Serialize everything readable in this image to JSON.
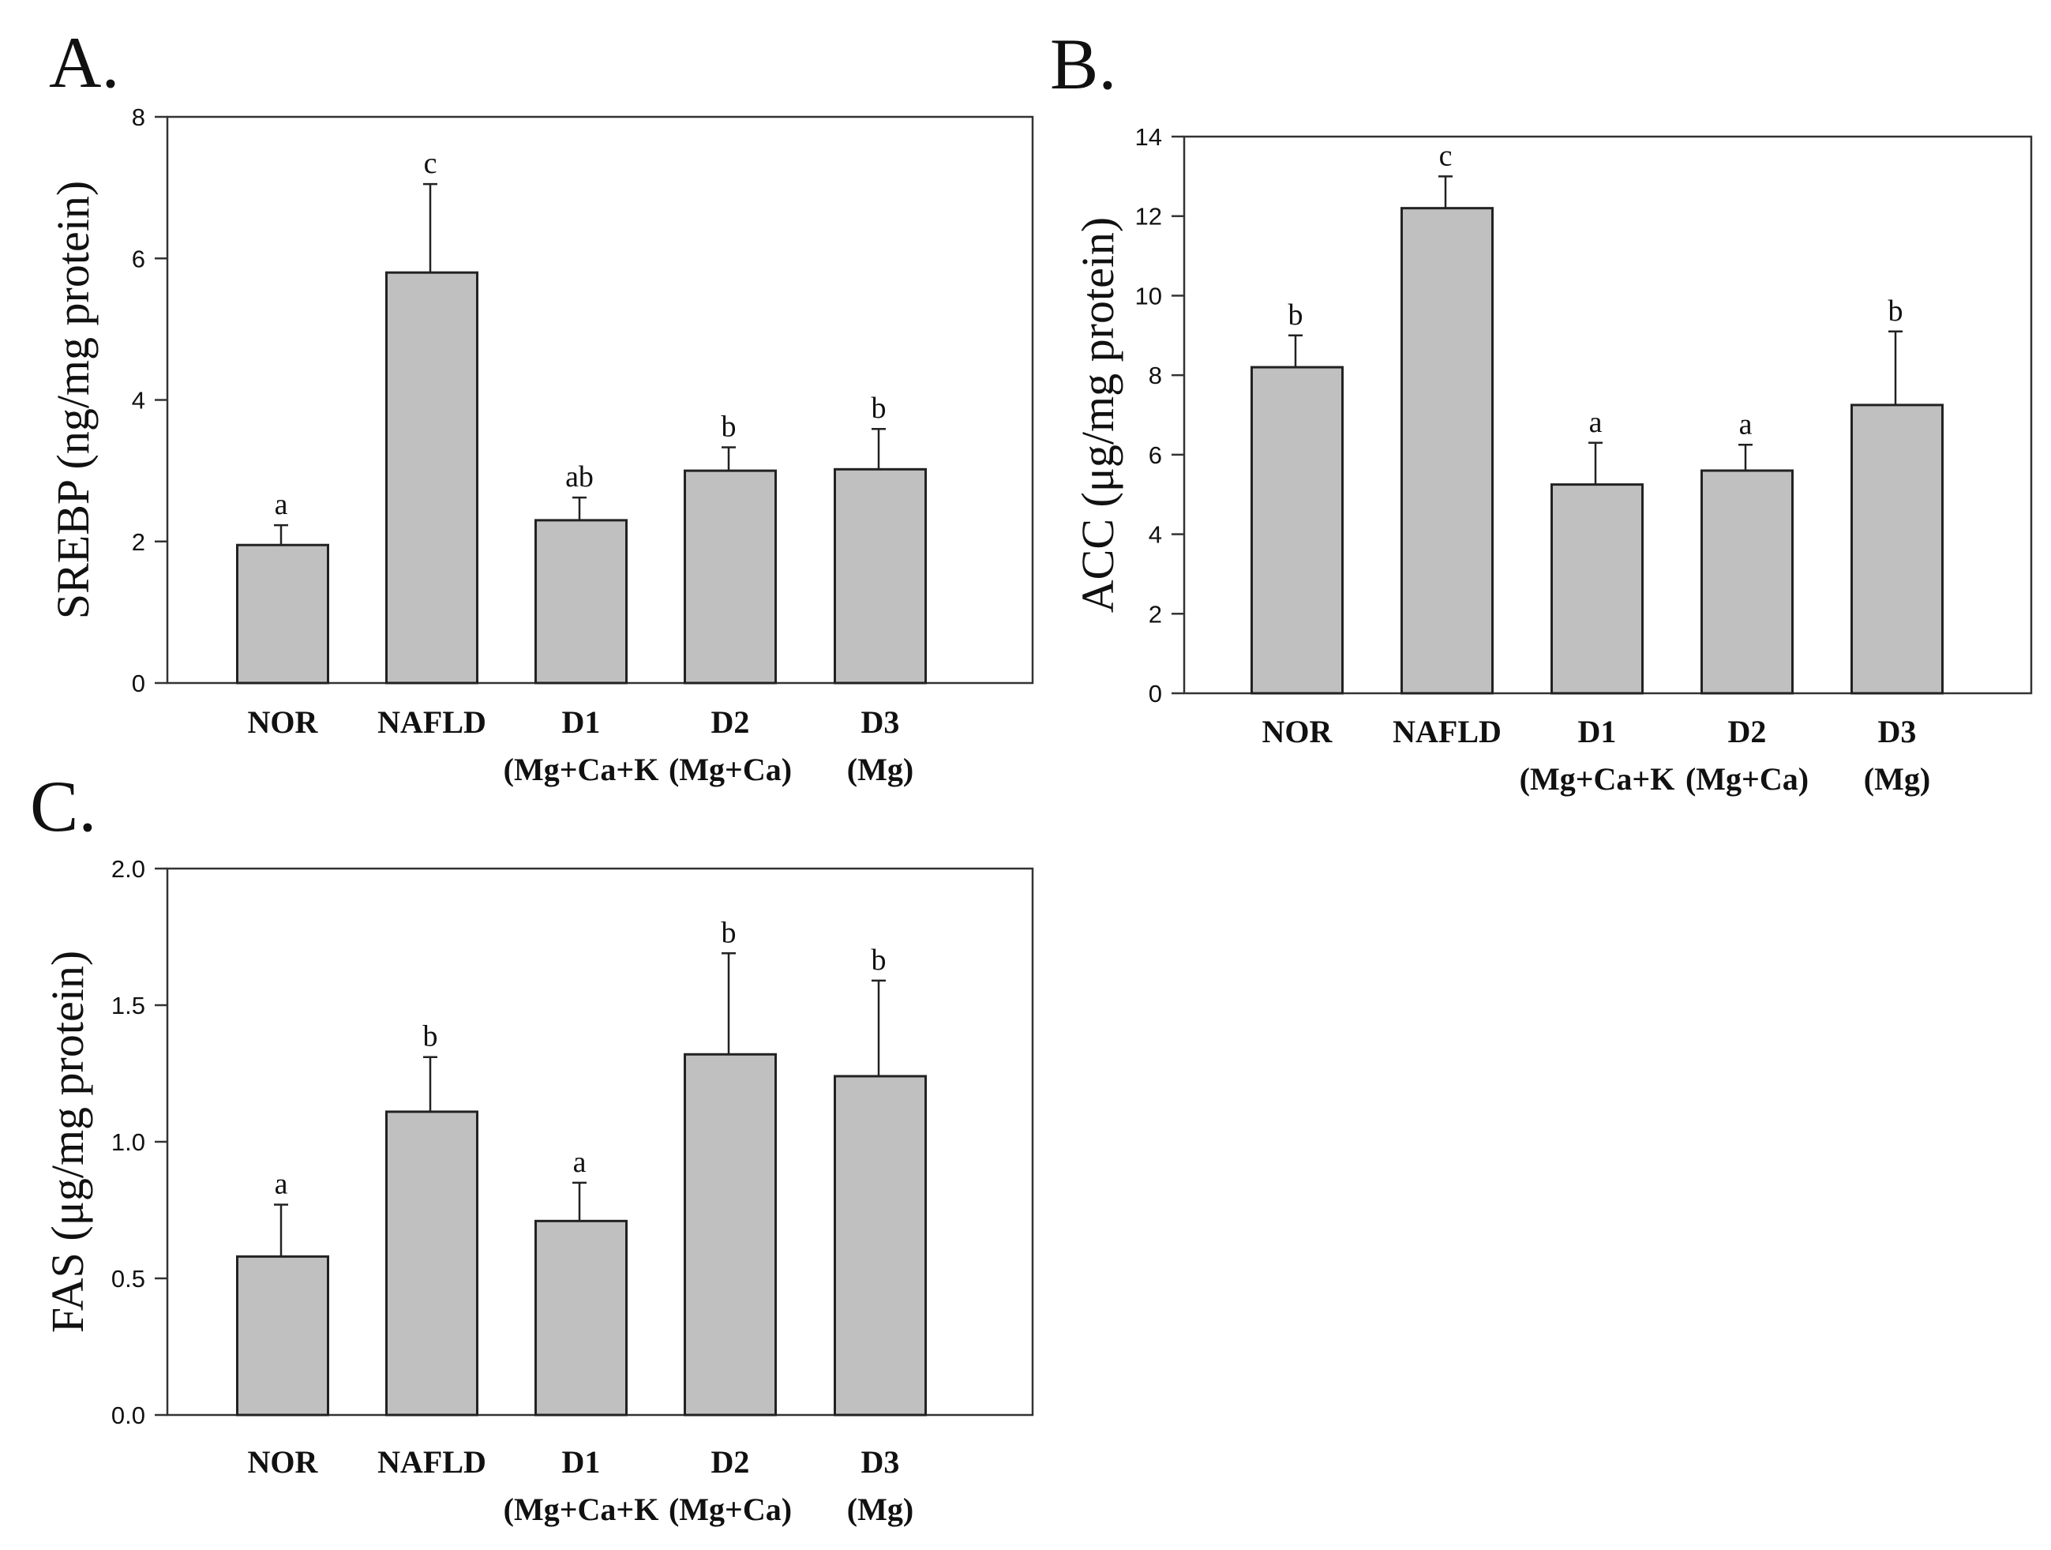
{
  "chart_data": [
    {
      "type": "bar",
      "panel": "A.",
      "title": "",
      "xlabel": "",
      "ylabel": "SREBP (ng/mg protein)",
      "ylim": [
        0,
        8
      ],
      "yticks": [
        "0",
        "2",
        "4",
        "6",
        "8"
      ],
      "categories": [
        {
          "line1": "NOR",
          "line2": ""
        },
        {
          "line1": "NAFLD",
          "line2": ""
        },
        {
          "line1": "D1",
          "line2": "(Mg+Ca+K"
        },
        {
          "line1": "D2",
          "line2": "(Mg+Ca)"
        },
        {
          "line1": "D3",
          "line2": "(Mg)"
        }
      ],
      "values": [
        1.95,
        5.8,
        2.3,
        3.0,
        3.02
      ],
      "errors": [
        0.28,
        1.25,
        0.32,
        0.33,
        0.57
      ],
      "significance": [
        "a",
        "c",
        "ab",
        "b",
        "b"
      ],
      "grid": false,
      "bar_color": "#c0c0c0"
    },
    {
      "type": "bar",
      "panel": "B.",
      "title": "",
      "xlabel": "",
      "ylabel": "ACC (μg/mg protein)",
      "ylim": [
        0,
        14
      ],
      "yticks": [
        "0",
        "2",
        "4",
        "6",
        "8",
        "10",
        "12",
        "14"
      ],
      "categories": [
        {
          "line1": "NOR",
          "line2": ""
        },
        {
          "line1": "NAFLD",
          "line2": ""
        },
        {
          "line1": "D1",
          "line2": "(Mg+Ca+K"
        },
        {
          "line1": "D2",
          "line2": "(Mg+Ca)"
        },
        {
          "line1": "D3",
          "line2": "(Mg)"
        }
      ],
      "values": [
        8.2,
        12.2,
        5.25,
        5.6,
        7.25
      ],
      "errors": [
        0.8,
        0.8,
        1.05,
        0.65,
        1.85
      ],
      "significance": [
        "b",
        "c",
        "a",
        "a",
        "b"
      ],
      "grid": false,
      "bar_color": "#c0c0c0"
    },
    {
      "type": "bar",
      "panel": "C.",
      "title": "",
      "xlabel": "",
      "ylabel": "FAS (μg/mg protein)",
      "ylim": [
        0,
        2
      ],
      "yticks": [
        "0.0",
        "0.5",
        "1.0",
        "1.5",
        "2.0"
      ],
      "categories": [
        {
          "line1": "NOR",
          "line2": ""
        },
        {
          "line1": "NAFLD",
          "line2": ""
        },
        {
          "line1": "D1",
          "line2": "(Mg+Ca+K"
        },
        {
          "line1": "D2",
          "line2": "(Mg+Ca)"
        },
        {
          "line1": "D3",
          "line2": "(Mg)"
        }
      ],
      "values": [
        0.58,
        1.11,
        0.71,
        1.32,
        1.24
      ],
      "errors": [
        0.19,
        0.2,
        0.14,
        0.37,
        0.35
      ],
      "significance": [
        "a",
        "b",
        "a",
        "b",
        "b"
      ],
      "grid": false,
      "bar_color": "#c0c0c0"
    }
  ]
}
